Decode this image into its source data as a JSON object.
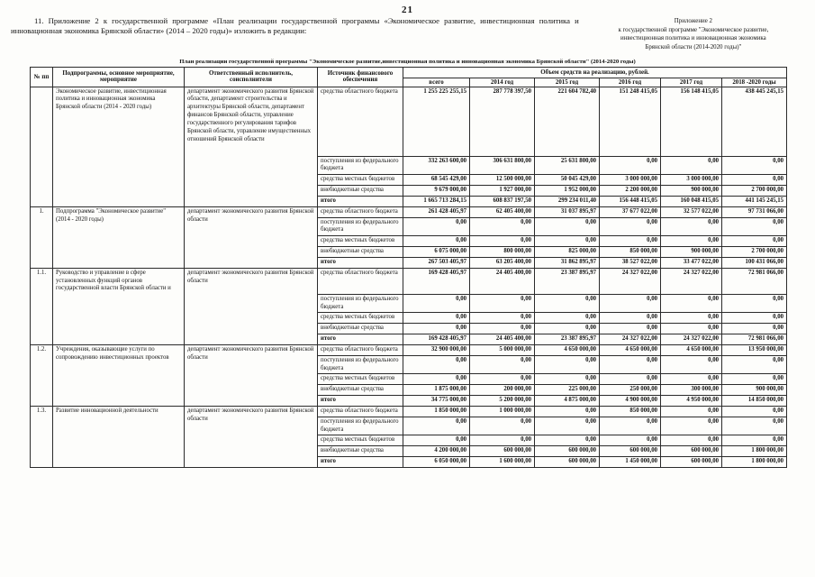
{
  "page": {
    "page_number": "21",
    "intro": "11. Приложение 2 к государственной программе «План реализации государственной программы «Экономическое развитие, инвестиционная политика и инновационная экономика Брянской области» (2014 – 2020 годы)» изложить в редакции:",
    "annex_lines": [
      "Приложение 2",
      "к государственной программе \"Экономическое развитие,",
      "инвестиционная политика и инновационная экономика",
      "Брянской области (2014-2020 годы)\""
    ],
    "table_title": "План реализации государственной программы \"Экономическое развитие,инвестиционная политика и инновационная экономика Брянской области\" (2014-2020 годы)"
  },
  "table": {
    "headers": {
      "num": "№ пп",
      "program": "Подпрограммы, основное мероприятие, мероприятие",
      "executor": "Ответственный исполнитель, соисполнители",
      "source": "Источник финансового обеспечения",
      "volume_group": "Объем средств на реализацию, рублей.",
      "years": [
        "всего",
        "2014 год",
        "2015 год",
        "2016 год",
        "2017 год",
        "2018 -2020 годы"
      ]
    },
    "sections": [
      {
        "num": "",
        "program": "Экономическое развитие, инвестиционная политика и инновационная экономика Брянской области (2014 - 2020 годы)",
        "executor": "департамент экономического развития Брянской области, департамент строительства и архитектуры Брянской области, департамент финансов Брянской области, управление государственного регулирования тарифов Брянской области, управление имущественных отношений Брянской области",
        "rows": [
          {
            "source": "средства областного бюджета",
            "values": [
              "1 255 225 255,15",
              "287 778 397,50",
              "221 604 782,40",
              "151 248 415,05",
              "156 148 415,05",
              "438 445 245,15"
            ]
          },
          {
            "source": "поступления из федерального бюджета",
            "values": [
              "332 263 600,00",
              "306 631 800,00",
              "25 631 800,00",
              "0,00",
              "0,00",
              "0,00"
            ]
          },
          {
            "source": "средства местных бюджетов",
            "values": [
              "68 545 429,00",
              "12 500 000,00",
              "50 045 429,00",
              "3 000 000,00",
              "3 000 000,00",
              "0,00"
            ]
          },
          {
            "source": "внебюджетные средства",
            "values": [
              "9 679 000,00",
              "1 927 000,00",
              "1 952 000,00",
              "2 200 000,00",
              "900 000,00",
              "2 700 000,00"
            ]
          },
          {
            "source": "итого",
            "bold": true,
            "values": [
              "1 665 713 284,15",
              "608 837 197,50",
              "299 234 011,40",
              "156 448 415,05",
              "160 048 415,05",
              "441 145 245,15"
            ]
          }
        ]
      },
      {
        "num": "1.",
        "program": "Подпрограмма \"Экономическое развитие\" (2014 - 2020 годы)",
        "executor": "департамент экономического развития Брянской области",
        "rows": [
          {
            "source": "средства областного бюджета",
            "values": [
              "261 428 405,97",
              "62 405 400,00",
              "31 037 895,97",
              "37 677 022,00",
              "32 577 022,00",
              "97 731 066,00"
            ]
          },
          {
            "source": "поступления из федерального бюджета",
            "values": [
              "0,00",
              "0,00",
              "0,00",
              "0,00",
              "0,00",
              "0,00"
            ]
          },
          {
            "source": "средства местных бюджетов",
            "values": [
              "0,00",
              "0,00",
              "0,00",
              "0,00",
              "0,00",
              "0,00"
            ]
          },
          {
            "source": "внебюджетные средства",
            "values": [
              "6 075 000,00",
              "800 000,00",
              "825 000,00",
              "850 000,00",
              "900 000,00",
              "2 700 000,00"
            ]
          },
          {
            "source": "итого",
            "bold": true,
            "values": [
              "267 503 405,97",
              "63 205 400,00",
              "31 862 895,97",
              "38 527 022,00",
              "33 477 022,00",
              "100 431 066,00"
            ]
          }
        ]
      },
      {
        "num": "1.1.",
        "program": "Руководство и управление в сфере установленных функций органов государственной власти Брянской области и",
        "executor": "департамент экономического развития Брянской области",
        "rows": [
          {
            "source": "средства областного бюджета",
            "values": [
              "169 428 405,97",
              "24 405 400,00",
              "23 387 895,97",
              "24 327 022,00",
              "24 327 022,00",
              "72 981 066,00"
            ]
          },
          {
            "source": "поступления из федерального бюджета",
            "values": [
              "0,00",
              "0,00",
              "0,00",
              "0,00",
              "0,00",
              "0,00"
            ]
          },
          {
            "source": "средства местных бюджетов",
            "values": [
              "0,00",
              "0,00",
              "0,00",
              "0,00",
              "0,00",
              "0,00"
            ]
          },
          {
            "source": "внебюджетные средства",
            "values": [
              "0,00",
              "0,00",
              "0,00",
              "0,00",
              "0,00",
              "0,00"
            ]
          },
          {
            "source": "итого",
            "bold": true,
            "values": [
              "169 428 405,97",
              "24 405 400,00",
              "23 387 895,97",
              "24 327 022,00",
              "24 327 022,00",
              "72 981 066,00"
            ]
          }
        ]
      },
      {
        "num": "1.2.",
        "program": "Учреждения, оказывающие услуги по сопровождению инвестиционных проектов",
        "executor": "департамент экономического развития Брянской области",
        "rows": [
          {
            "source": "средства областного бюджета",
            "values": [
              "32 900 000,00",
              "5 000 000,00",
              "4 650 000,00",
              "4 650 000,00",
              "4 650 000,00",
              "13 950 000,00"
            ]
          },
          {
            "source": "поступления из федерального бюджета",
            "values": [
              "0,00",
              "0,00",
              "0,00",
              "0,00",
              "0,00",
              "0,00"
            ]
          },
          {
            "source": "средства местных бюджетов",
            "values": [
              "0,00",
              "0,00",
              "0,00",
              "0,00",
              "0,00",
              "0,00"
            ]
          },
          {
            "source": "внебюджетные средства",
            "values": [
              "1 875 000,00",
              "200 000,00",
              "225 000,00",
              "250 000,00",
              "300 000,00",
              "900 000,00"
            ]
          },
          {
            "source": "итого",
            "bold": true,
            "values": [
              "34 775 000,00",
              "5 200 000,00",
              "4 875 000,00",
              "4 900 000,00",
              "4 950 000,00",
              "14 850 000,00"
            ]
          }
        ]
      },
      {
        "num": "1.3.",
        "program": "Развитие инновационной деятельности",
        "executor": "департамент экономического развития Брянской области",
        "rows": [
          {
            "source": "средства областного бюджета",
            "values": [
              "1 850 000,00",
              "1 000 000,00",
              "0,00",
              "850 000,00",
              "0,00",
              "0,00"
            ]
          },
          {
            "source": "поступления из федерального бюджета",
            "values": [
              "0,00",
              "0,00",
              "0,00",
              "0,00",
              "0,00",
              "0,00"
            ]
          },
          {
            "source": "средства местных бюджетов",
            "values": [
              "0,00",
              "0,00",
              "0,00",
              "0,00",
              "0,00",
              "0,00"
            ]
          },
          {
            "source": "внебюджетные средства",
            "values": [
              "4 200 000,00",
              "600 000,00",
              "600 000,00",
              "600 000,00",
              "600 000,00",
              "1 800 000,00"
            ]
          },
          {
            "source": "итого",
            "bold": true,
            "values": [
              "6 050 000,00",
              "1 600 000,00",
              "600 000,00",
              "1 450 000,00",
              "600 000,00",
              "1 800 000,00"
            ]
          }
        ]
      }
    ]
  }
}
